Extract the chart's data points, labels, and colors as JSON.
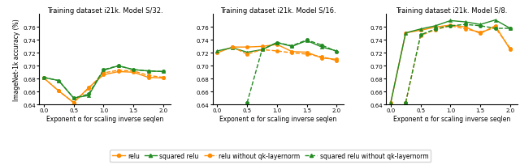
{
  "titles": [
    "Training dataset i21k. Model S/32.",
    "Training dataset i21k. Model S/16.",
    "Training dataset i21k. Model S/8."
  ],
  "xlabel": "Exponent α for scaling inverse seqlen",
  "ylabel": "ImageNet-1k accuracy (%)",
  "x_ticks": [
    0.0,
    0.5,
    1.0,
    1.5,
    2.0
  ],
  "ylim": [
    0.64,
    0.78
  ],
  "yticks": [
    0.64,
    0.66,
    0.68,
    0.7,
    0.72,
    0.74,
    0.76
  ],
  "series": {
    "s32": {
      "relu": {
        "x": [
          0.0,
          0.25,
          0.5,
          0.75,
          1.0,
          1.25,
          1.5,
          1.75,
          2.0
        ],
        "y": [
          0.681,
          0.661,
          0.643,
          0.666,
          0.686,
          0.691,
          0.69,
          0.682,
          0.681
        ]
      },
      "squared_relu": {
        "x": [
          0.0,
          0.25,
          0.5,
          0.75,
          1.0,
          1.25,
          1.5,
          1.75,
          2.0
        ],
        "y": [
          0.682,
          0.677,
          0.65,
          0.654,
          0.693,
          0.7,
          0.694,
          0.692,
          0.691
        ]
      },
      "relu_no_qk": {
        "x": [
          0.0,
          0.25,
          0.5,
          0.75,
          1.0,
          1.25,
          1.5,
          1.75,
          2.0
        ],
        "y": [
          0.681,
          0.661,
          0.643,
          0.665,
          0.689,
          0.693,
          0.692,
          0.685,
          0.682
        ]
      },
      "sq_relu_no_qk": {
        "x": [
          0.0,
          0.25,
          0.5,
          0.75,
          1.0,
          1.25,
          1.5,
          1.75,
          2.0
        ],
        "y": [
          0.682,
          0.677,
          0.65,
          0.656,
          0.694,
          0.7,
          0.694,
          0.692,
          0.691
        ]
      }
    },
    "s16": {
      "relu": {
        "x": [
          0.0,
          0.25,
          0.5,
          0.75,
          1.0,
          1.25,
          1.5,
          1.75,
          2.0
        ],
        "y": [
          0.72,
          0.729,
          0.729,
          0.73,
          0.733,
          0.722,
          0.721,
          0.712,
          0.71
        ]
      },
      "squared_relu": {
        "x": [
          0.0,
          0.25,
          0.5,
          0.75,
          1.0,
          1.25,
          1.5,
          1.75,
          2.0
        ],
        "y": [
          0.723,
          0.728,
          0.721,
          0.725,
          0.736,
          0.73,
          0.739,
          0.729,
          0.723
        ]
      },
      "relu_no_qk": {
        "x": [
          0.25,
          0.5,
          0.75,
          1.0,
          1.25,
          1.5,
          1.75,
          2.0
        ],
        "y": [
          0.729,
          0.718,
          0.725,
          0.723,
          0.72,
          0.718,
          0.714,
          0.708
        ]
      },
      "sq_relu_no_qk": {
        "x": [
          0.5,
          0.75,
          1.0,
          1.25,
          1.5,
          1.75,
          2.0
        ],
        "y": [
          0.643,
          0.725,
          0.736,
          0.731,
          0.74,
          0.732,
          0.722
        ]
      }
    },
    "s8": {
      "relu": {
        "x": [
          0.0,
          0.25,
          0.5,
          0.75,
          1.0,
          1.25,
          1.5,
          1.75,
          2.0
        ],
        "y": [
          0.643,
          0.751,
          0.755,
          0.76,
          0.763,
          0.76,
          0.75,
          0.762,
          0.725
        ]
      },
      "squared_relu": {
        "x": [
          0.0,
          0.25,
          0.5,
          0.75,
          1.0,
          1.25,
          1.5,
          1.75,
          2.0
        ],
        "y": [
          0.643,
          0.751,
          0.757,
          0.762,
          0.77,
          0.768,
          0.764,
          0.771,
          0.758
        ]
      },
      "relu_no_qk": {
        "x": [
          0.25,
          0.5,
          0.75,
          1.0,
          1.25,
          1.5,
          1.75,
          2.0
        ],
        "y": [
          0.643,
          0.747,
          0.756,
          0.762,
          0.757,
          0.752,
          0.759,
          0.727
        ]
      },
      "sq_relu_no_qk": {
        "x": [
          0.25,
          0.5,
          0.75,
          1.0,
          1.25,
          1.5,
          1.75,
          2.0
        ],
        "y": [
          0.643,
          0.748,
          0.757,
          0.762,
          0.764,
          0.762,
          0.758,
          0.758
        ]
      }
    }
  },
  "colors": {
    "relu": "#ff8c00",
    "squared_relu": "#228b22",
    "relu_no_qk": "#ff8c00",
    "sq_relu_no_qk": "#228b22"
  },
  "legend": {
    "relu": "relu",
    "squared_relu": "squared relu",
    "relu_no_qk": "relu without qk-layernorm",
    "sq_relu_no_qk": "squared relu without qk-layernorm"
  },
  "title_fontsize": 6.0,
  "axis_fontsize": 5.5,
  "tick_fontsize": 5.0,
  "legend_fontsize": 5.5,
  "linewidth": 1.0,
  "markersize": 3.0
}
